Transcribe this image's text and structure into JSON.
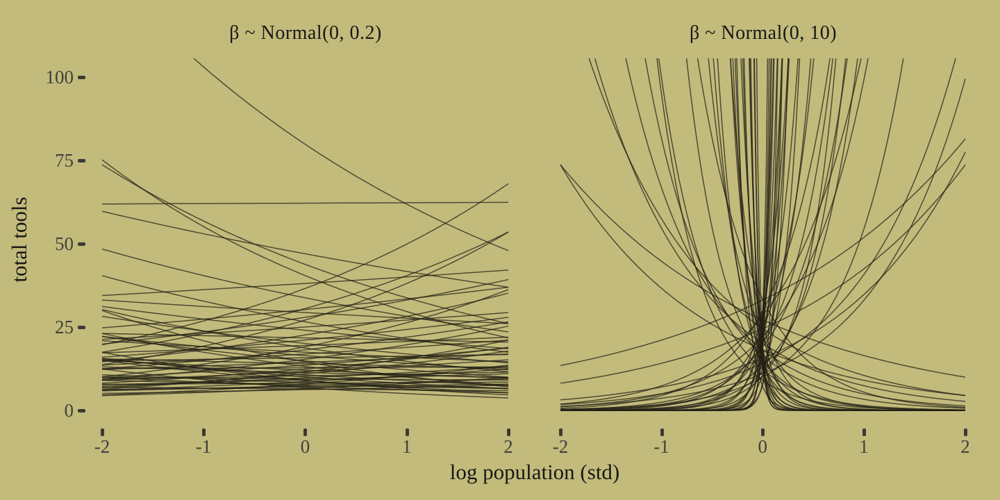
{
  "figure": {
    "background_color": "#c3bb7c",
    "curve_color": "#211e15",
    "curve_opacity": 0.72,
    "text_color": "#181815",
    "tick_label_color": "#40403b",
    "tick_mark_color": "#3a3a35"
  },
  "chart_data": {
    "type": "line",
    "description": "Prior predictive simulation, two facet panels of exponential curves total tools = exp(alpha + beta * log-population-std), alpha ~ Normal(3, 0.5)",
    "curve_function": "y = exp(a + b*x)",
    "xlabel": "log population (std)",
    "ylabel": "total tools",
    "xlim": [
      -2,
      2
    ],
    "ylim": [
      0,
      105
    ],
    "grid": false,
    "legend": false,
    "x_ticks": [
      -2,
      -1,
      0,
      1,
      2
    ],
    "y_ticks": [
      0,
      25,
      50,
      75,
      100
    ],
    "x_tick_labels": [
      "-2",
      "-1",
      "0",
      "1",
      "2"
    ],
    "y_tick_labels": [
      "100",
      "75",
      "50",
      "25",
      "0"
    ],
    "panels": [
      {
        "title": "β ~ Normal(0, 0.2)",
        "curves_ab": [
          [
            4.38,
            -0.255
          ],
          [
            4.13,
            0.002
          ],
          [
            3.6,
            0.31
          ],
          [
            3.42,
            0.28
          ],
          [
            3.3,
            0.34
          ],
          [
            3.78,
            -0.26
          ],
          [
            3.7,
            -0.31
          ],
          [
            3.85,
            -0.12
          ],
          [
            3.64,
            0.05
          ],
          [
            3.52,
            -0.18
          ],
          [
            3.41,
            0.1
          ],
          [
            3.38,
            -0.06
          ],
          [
            3.33,
            0.17
          ],
          [
            3.28,
            -0.21
          ],
          [
            3.22,
            0.08
          ],
          [
            3.18,
            -0.13
          ],
          [
            3.12,
            0.22
          ],
          [
            3.08,
            -0.03
          ],
          [
            3.05,
            0.14
          ],
          [
            3.0,
            -0.17
          ],
          [
            2.97,
            0.06
          ],
          [
            2.93,
            -0.24
          ],
          [
            2.9,
            0.19
          ],
          [
            2.86,
            -0.09
          ],
          [
            2.83,
            0.11
          ],
          [
            2.8,
            -0.15
          ],
          [
            2.76,
            0.03
          ],
          [
            2.73,
            0.25
          ],
          [
            2.7,
            -0.2
          ],
          [
            2.67,
            0.08
          ],
          [
            2.64,
            -0.05
          ],
          [
            2.61,
            0.16
          ],
          [
            2.58,
            -0.28
          ],
          [
            2.55,
            0.01
          ],
          [
            2.52,
            0.21
          ],
          [
            2.49,
            -0.11
          ],
          [
            2.46,
            0.13
          ],
          [
            2.43,
            -0.07
          ],
          [
            2.4,
            0.24
          ],
          [
            2.37,
            -0.18
          ],
          [
            2.34,
            0.05
          ],
          [
            2.31,
            -0.22
          ],
          [
            2.28,
            0.15
          ],
          [
            2.25,
            -0.02
          ],
          [
            2.22,
            0.09
          ],
          [
            2.19,
            -0.26
          ],
          [
            2.16,
            0.18
          ],
          [
            2.13,
            -0.12
          ],
          [
            2.1,
            0.02
          ],
          [
            2.07,
            0.27
          ],
          [
            2.04,
            -0.08
          ],
          [
            2.01,
            0.12
          ],
          [
            1.98,
            -0.16
          ],
          [
            1.95,
            0.06
          ],
          [
            1.92,
            -0.3
          ],
          [
            1.89,
            0.2
          ],
          [
            1.86,
            -0.04
          ],
          [
            1.83,
            0.1
          ],
          [
            2.95,
            0.32
          ],
          [
            2.68,
            -0.36
          ],
          [
            2.45,
            0.3
          ],
          [
            2.2,
            -0.33
          ]
        ]
      },
      {
        "title": "β ~ Normal(0, 10)",
        "curves_ab": [
          [
            3.2,
            0.55
          ],
          [
            2.9,
            -0.7
          ],
          [
            3.5,
            0.45
          ],
          [
            2.66,
            1.05
          ],
          [
            3.0,
            -1.0
          ],
          [
            2.4,
            1.1
          ],
          [
            3.3,
            -0.5
          ],
          [
            2.75,
            0.8
          ],
          [
            3.2,
            -0.85
          ],
          [
            3.1,
            1.5
          ],
          [
            2.8,
            -1.6
          ],
          [
            3.4,
            1.9
          ],
          [
            2.5,
            -2.1
          ],
          [
            3.0,
            2.4
          ],
          [
            2.7,
            -2.6
          ],
          [
            3.2,
            2.9
          ],
          [
            2.9,
            -1.3
          ],
          [
            2.3,
            1.7
          ],
          [
            3.5,
            -1.8
          ],
          [
            2.6,
            2.2
          ],
          [
            3.1,
            -2.9
          ],
          [
            2.45,
            2.7
          ],
          [
            3.35,
            1.35
          ],
          [
            2.2,
            -2.35
          ],
          [
            2.95,
            2.05
          ],
          [
            3.0,
            3.5
          ],
          [
            2.8,
            -3.8
          ],
          [
            3.2,
            4.2
          ],
          [
            2.6,
            -4.6
          ],
          [
            3.4,
            5.0
          ],
          [
            2.9,
            -5.5
          ],
          [
            3.1,
            6.0
          ],
          [
            2.7,
            -6.6
          ],
          [
            3.3,
            7.2
          ],
          [
            2.5,
            -7.9
          ],
          [
            3.0,
            8.6
          ],
          [
            2.8,
            -9.4
          ],
          [
            3.2,
            10.2
          ],
          [
            2.6,
            -11.1
          ],
          [
            3.4,
            12.0
          ],
          [
            2.9,
            -13.0
          ],
          [
            3.1,
            14.1
          ],
          [
            2.7,
            -15.3
          ],
          [
            3.3,
            16.6
          ],
          [
            2.5,
            -18.0
          ],
          [
            3.0,
            19.5
          ],
          [
            2.8,
            -21.1
          ],
          [
            3.2,
            22.8
          ],
          [
            2.6,
            -24.6
          ],
          [
            3.4,
            26.5
          ],
          [
            2.9,
            -28.5
          ],
          [
            2.4,
            9.0
          ],
          [
            3.15,
            -7.0
          ],
          [
            2.55,
            5.8
          ],
          [
            3.25,
            -4.4
          ],
          [
            2.35,
            3.2
          ],
          [
            2.05,
            13.5
          ],
          [
            1.95,
            -10.5
          ],
          [
            2.15,
            17.0
          ]
        ]
      }
    ]
  }
}
